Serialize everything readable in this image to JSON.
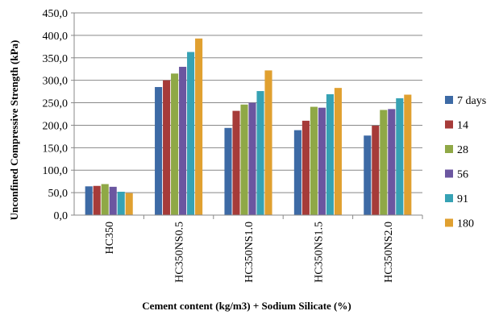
{
  "chart_data": {
    "type": "bar",
    "title": "",
    "xlabel": "Cement content (kg/m3) + Sodium Silicate (%)",
    "ylabel": "Unconfined Compressive Strength (kPa)",
    "ylim": [
      0,
      450
    ],
    "yticks": [
      "0,0",
      "50,0",
      "100,0",
      "150,0",
      "200,0",
      "250,0",
      "300,0",
      "350,0",
      "400,0",
      "450,0"
    ],
    "ytick_values": [
      0,
      50,
      100,
      150,
      200,
      250,
      300,
      350,
      400,
      450
    ],
    "grid": true,
    "legend_position": "right",
    "categories": [
      "HC350",
      "HC350NS0.5",
      "HC350NS1.0",
      "HC350NS1.5",
      "HC350NS2.0"
    ],
    "series": [
      {
        "name": "7 days",
        "color": "#3d6aa5",
        "values": [
          64,
          285,
          194,
          189,
          177
        ]
      },
      {
        "name": "14",
        "color": "#a63b39",
        "values": [
          65,
          300,
          232,
          210,
          199
        ]
      },
      {
        "name": "28",
        "color": "#8fa846",
        "values": [
          69,
          315,
          246,
          241,
          234
        ]
      },
      {
        "name": "56",
        "color": "#6b56a0",
        "values": [
          63,
          330,
          250,
          239,
          236
        ]
      },
      {
        "name": "91",
        "color": "#36a2b4",
        "values": [
          52,
          363,
          276,
          269,
          260
        ]
      },
      {
        "name": "180",
        "color": "#e0a030",
        "values": [
          49,
          393,
          322,
          283,
          268
        ]
      }
    ]
  }
}
